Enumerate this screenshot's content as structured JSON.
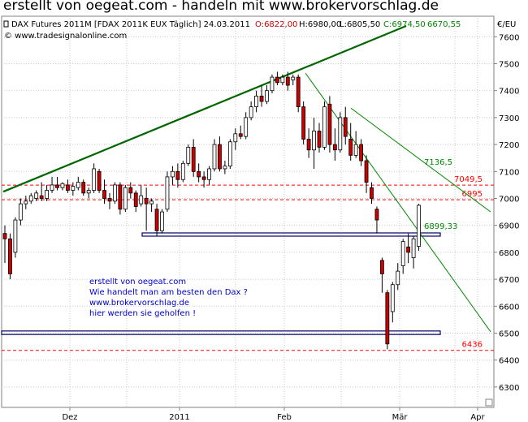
{
  "page": {
    "title": "erstellt von oegeat.com - handeln mit www.brokervorschlag.de"
  },
  "chart_header": {
    "instrument": "DAX Futures 2011M [FDAX 2011K EUX  Täglich] 24.03.2011",
    "open_text": "O:6822,00",
    "high_text": "H:6980,00",
    "low_text": "L:6805,50",
    "close_text": "C:6974,50",
    "extra_value": "6670,55",
    "copyright": "© www.tradesignalonline.com",
    "currency": "€/EU"
  },
  "annotation": {
    "lines": [
      "erstellt von oegeat.com",
      "Wie handelt man am besten den Dax ?",
      "www.brokervorschlag.de",
      "hier werden sie geholfen !"
    ]
  },
  "chart_data": {
    "type": "candlestick",
    "y_axis": {
      "ticks": [
        6300,
        6400,
        6500,
        6600,
        6700,
        6800,
        6900,
        7000,
        7100,
        7200,
        7300,
        7400,
        7500,
        7600
      ],
      "ylim": [
        6200,
        7650
      ],
      "side": "right"
    },
    "x_axis": {
      "labels": [
        "Dez",
        "2011",
        "Feb",
        "Mär",
        "Apr"
      ]
    },
    "grid": true,
    "colors": {
      "up": "#ffffff",
      "down": "#cc0000",
      "outline": "#000000",
      "trend_dark": "#006600",
      "trend_light": "#008800",
      "level": "#ff0000",
      "annotation": "#0000cc"
    },
    "levels": [
      {
        "value": 7049.5,
        "label": "7049,5"
      },
      {
        "value": 6995,
        "label": "6995"
      },
      {
        "value": 6436,
        "label": "6436"
      }
    ],
    "trend_labels": [
      {
        "label": "7136,5",
        "value": 7136.5
      },
      {
        "label": "6899,33",
        "value": 6899.33
      }
    ],
    "boxes": [
      {
        "from": 6860,
        "to": 6872
      },
      {
        "from": 6495,
        "to": 6508
      }
    ],
    "candles": [
      {
        "o": 6870,
        "h": 6900,
        "l": 6760,
        "c": 6850
      },
      {
        "o": 6850,
        "h": 6870,
        "l": 6700,
        "c": 6720
      },
      {
        "o": 6800,
        "h": 6930,
        "l": 6780,
        "c": 6920
      },
      {
        "o": 6920,
        "h": 7000,
        "l": 6900,
        "c": 6980
      },
      {
        "o": 6980,
        "h": 7010,
        "l": 6960,
        "c": 6990
      },
      {
        "o": 6990,
        "h": 7020,
        "l": 6980,
        "c": 7010
      },
      {
        "o": 7000,
        "h": 7030,
        "l": 6990,
        "c": 7020
      },
      {
        "o": 7010,
        "h": 7060,
        "l": 6990,
        "c": 7000
      },
      {
        "o": 7000,
        "h": 7050,
        "l": 6990,
        "c": 7030
      },
      {
        "o": 7030,
        "h": 7080,
        "l": 7020,
        "c": 7050
      },
      {
        "o": 7050,
        "h": 7080,
        "l": 7030,
        "c": 7040
      },
      {
        "o": 7040,
        "h": 7060,
        "l": 7030,
        "c": 7055
      },
      {
        "o": 7050,
        "h": 7070,
        "l": 7020,
        "c": 7030
      },
      {
        "o": 7030,
        "h": 7060,
        "l": 7010,
        "c": 7045
      },
      {
        "o": 7040,
        "h": 7080,
        "l": 7030,
        "c": 7060
      },
      {
        "o": 7060,
        "h": 7070,
        "l": 7010,
        "c": 7020
      },
      {
        "o": 7020,
        "h": 7040,
        "l": 7000,
        "c": 7030
      },
      {
        "o": 7030,
        "h": 7130,
        "l": 7020,
        "c": 7110
      },
      {
        "o": 7100,
        "h": 7110,
        "l": 7020,
        "c": 7030
      },
      {
        "o": 7030,
        "h": 7070,
        "l": 6980,
        "c": 7000
      },
      {
        "o": 7000,
        "h": 7020,
        "l": 6960,
        "c": 6990
      },
      {
        "o": 6990,
        "h": 7060,
        "l": 6980,
        "c": 7050
      },
      {
        "o": 7050,
        "h": 7060,
        "l": 6940,
        "c": 6960
      },
      {
        "o": 6960,
        "h": 7050,
        "l": 6950,
        "c": 7040
      },
      {
        "o": 7040,
        "h": 7060,
        "l": 7000,
        "c": 7020
      },
      {
        "o": 7020,
        "h": 7030,
        "l": 6950,
        "c": 6970
      },
      {
        "o": 6980,
        "h": 7050,
        "l": 6970,
        "c": 7010
      },
      {
        "o": 7000,
        "h": 7040,
        "l": 6880,
        "c": 6980
      },
      {
        "o": 6980,
        "h": 7000,
        "l": 6950,
        "c": 6990
      },
      {
        "o": 6960,
        "h": 6980,
        "l": 6860,
        "c": 6880
      },
      {
        "o": 6880,
        "h": 6960,
        "l": 6870,
        "c": 6950
      },
      {
        "o": 6960,
        "h": 7100,
        "l": 6950,
        "c": 7080
      },
      {
        "o": 7080,
        "h": 7120,
        "l": 7050,
        "c": 7100
      },
      {
        "o": 7100,
        "h": 7130,
        "l": 7040,
        "c": 7070
      },
      {
        "o": 7070,
        "h": 7140,
        "l": 7060,
        "c": 7130
      },
      {
        "o": 7130,
        "h": 7200,
        "l": 7120,
        "c": 7190
      },
      {
        "o": 7190,
        "h": 7220,
        "l": 7080,
        "c": 7100
      },
      {
        "o": 7100,
        "h": 7130,
        "l": 7060,
        "c": 7080
      },
      {
        "o": 7080,
        "h": 7100,
        "l": 7040,
        "c": 7070
      },
      {
        "o": 7070,
        "h": 7120,
        "l": 7050,
        "c": 7110
      },
      {
        "o": 7110,
        "h": 7220,
        "l": 7100,
        "c": 7200
      },
      {
        "o": 7200,
        "h": 7230,
        "l": 7100,
        "c": 7110
      },
      {
        "o": 7110,
        "h": 7140,
        "l": 7090,
        "c": 7120
      },
      {
        "o": 7120,
        "h": 7220,
        "l": 7110,
        "c": 7210
      },
      {
        "o": 7210,
        "h": 7260,
        "l": 7180,
        "c": 7240
      },
      {
        "o": 7240,
        "h": 7270,
        "l": 7220,
        "c": 7230
      },
      {
        "o": 7230,
        "h": 7320,
        "l": 7220,
        "c": 7300
      },
      {
        "o": 7300,
        "h": 7360,
        "l": 7290,
        "c": 7340
      },
      {
        "o": 7340,
        "h": 7400,
        "l": 7320,
        "c": 7380
      },
      {
        "o": 7380,
        "h": 7420,
        "l": 7340,
        "c": 7360
      },
      {
        "o": 7360,
        "h": 7420,
        "l": 7350,
        "c": 7400
      },
      {
        "o": 7400,
        "h": 7460,
        "l": 7390,
        "c": 7450
      },
      {
        "o": 7450,
        "h": 7470,
        "l": 7420,
        "c": 7430
      },
      {
        "o": 7430,
        "h": 7460,
        "l": 7420,
        "c": 7450
      },
      {
        "o": 7450,
        "h": 7470,
        "l": 7400,
        "c": 7420
      },
      {
        "o": 7440,
        "h": 7460,
        "l": 7420,
        "c": 7450
      },
      {
        "o": 7450,
        "h": 7460,
        "l": 7320,
        "c": 7340
      },
      {
        "o": 7340,
        "h": 7360,
        "l": 7200,
        "c": 7220
      },
      {
        "o": 7220,
        "h": 7260,
        "l": 7150,
        "c": 7180
      },
      {
        "o": 7180,
        "h": 7300,
        "l": 7110,
        "c": 7250
      },
      {
        "o": 7250,
        "h": 7280,
        "l": 7170,
        "c": 7190
      },
      {
        "o": 7190,
        "h": 7360,
        "l": 7180,
        "c": 7340
      },
      {
        "o": 7350,
        "h": 7380,
        "l": 7170,
        "c": 7200
      },
      {
        "o": 7200,
        "h": 7260,
        "l": 7140,
        "c": 7180
      },
      {
        "o": 7180,
        "h": 7320,
        "l": 7170,
        "c": 7300
      },
      {
        "o": 7300,
        "h": 7340,
        "l": 7200,
        "c": 7230
      },
      {
        "o": 7220,
        "h": 7280,
        "l": 7140,
        "c": 7160
      },
      {
        "o": 7160,
        "h": 7250,
        "l": 7150,
        "c": 7200
      },
      {
        "o": 7200,
        "h": 7220,
        "l": 7120,
        "c": 7140
      },
      {
        "o": 7140,
        "h": 7160,
        "l": 7020,
        "c": 7060
      },
      {
        "o": 7040,
        "h": 7060,
        "l": 6980,
        "c": 7000
      },
      {
        "o": 6960,
        "h": 6970,
        "l": 6870,
        "c": 6920
      },
      {
        "o": 6770,
        "h": 6780,
        "l": 6650,
        "c": 6720
      },
      {
        "o": 6650,
        "h": 6660,
        "l": 6440,
        "c": 6460
      },
      {
        "o": 6580,
        "h": 6690,
        "l": 6540,
        "c": 6680
      },
      {
        "o": 6680,
        "h": 6760,
        "l": 6660,
        "c": 6730
      },
      {
        "o": 6750,
        "h": 6850,
        "l": 6720,
        "c": 6840
      },
      {
        "o": 6820,
        "h": 6870,
        "l": 6760,
        "c": 6800
      },
      {
        "o": 6780,
        "h": 6860,
        "l": 6740,
        "c": 6850
      },
      {
        "o": 6822,
        "h": 6980,
        "l": 6805.5,
        "c": 6974.5
      }
    ]
  }
}
